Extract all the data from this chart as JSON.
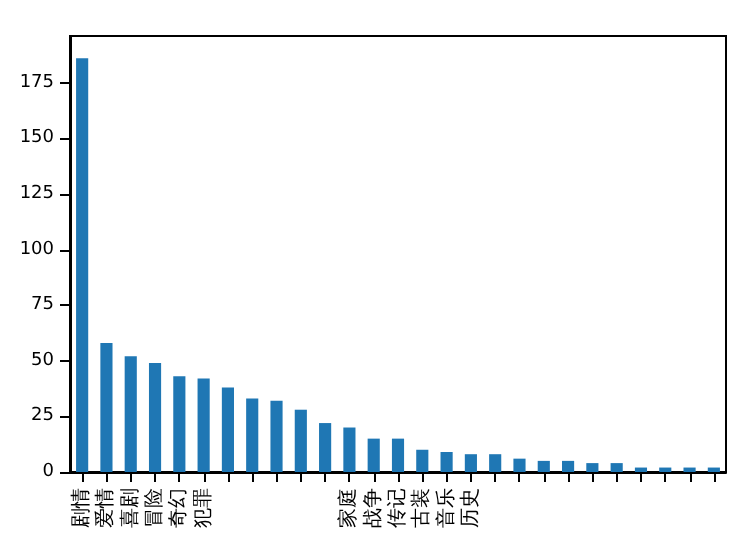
{
  "chart_data": {
    "type": "bar",
    "categories": [
      "剧情",
      "爱情",
      "喜剧",
      "冒险",
      "奇幻",
      "犯罪",
      null,
      null,
      null,
      null,
      null,
      "家庭",
      "战争",
      "传记",
      "古装",
      "音乐",
      "历史",
      null,
      null,
      null,
      null,
      null,
      null,
      null,
      null,
      null,
      null
    ],
    "values": [
      186,
      58,
      52,
      49,
      43,
      42,
      38,
      33,
      32,
      28,
      22,
      20,
      15,
      15,
      10,
      9,
      8,
      8,
      6,
      5,
      5,
      4,
      4,
      2,
      2,
      2,
      2
    ],
    "color": "#1f77b4",
    "ylim": [
      0,
      196
    ],
    "yticks": [
      0,
      25,
      50,
      75,
      100,
      125,
      150,
      175
    ],
    "grid": false
  }
}
